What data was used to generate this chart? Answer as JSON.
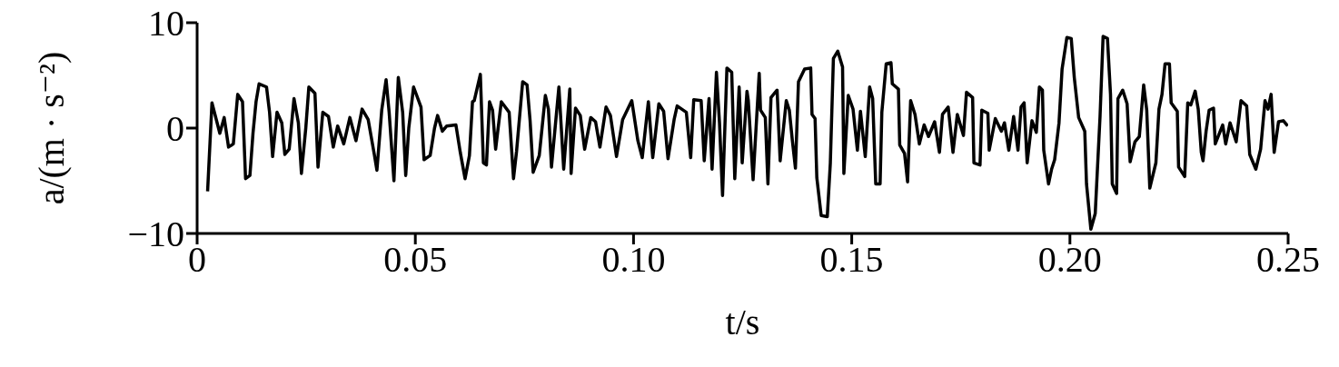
{
  "chart_data": {
    "type": "line",
    "xlabel": "t/s",
    "ylabel": "a/(m · s⁻²)",
    "xlim": [
      0,
      0.25
    ],
    "xticks": [
      0,
      0.05,
      {
        "value": 0.1,
        "label": "0.10"
      },
      0.15,
      {
        "value": 0.2,
        "label": "0.20"
      },
      0.25
    ],
    "ylim": [
      -10,
      10
    ],
    "yticks": [
      {
        "value": -10,
        "label": "−10"
      },
      0,
      10
    ],
    "x": [
      0.0024,
      0.0034,
      0.0052,
      0.0062,
      0.0072,
      0.0083,
      0.0093,
      0.0104,
      0.0111,
      0.0121,
      0.0128,
      0.0135,
      0.0142,
      0.0159,
      0.0166,
      0.0173,
      0.0183,
      0.0194,
      0.0201,
      0.0211,
      0.0222,
      0.0232,
      0.0239,
      0.0249,
      0.0256,
      0.027,
      0.0277,
      0.0288,
      0.0301,
      0.0312,
      0.0322,
      0.0336,
      0.035,
      0.0364,
      0.0378,
      0.0392,
      0.0406,
      0.0412,
      0.0423,
      0.0433,
      0.044,
      0.0451,
      0.0461,
      0.0471,
      0.0478,
      0.0485,
      0.0496,
      0.0513,
      0.052,
      0.0534,
      0.0544,
      0.0551,
      0.0562,
      0.0572,
      0.0593,
      0.0603,
      0.0614,
      0.0624,
      0.0631,
      0.0635,
      0.0649,
      0.0656,
      0.0663,
      0.067,
      0.0677,
      0.0684,
      0.0697,
      0.0715,
      0.0722,
      0.0725,
      0.0732,
      0.0746,
      0.0756,
      0.0763,
      0.077,
      0.0784,
      0.0798,
      0.0805,
      0.0812,
      0.0829,
      0.084,
      0.0854,
      0.0857,
      0.0867,
      0.0878,
      0.0888,
      0.0902,
      0.0913,
      0.0923,
      0.0937,
      0.0947,
      0.0961,
      0.0975,
      0.0982,
      0.0996,
      0.101,
      0.102,
      0.1034,
      0.1044,
      0.1058,
      0.1069,
      0.1079,
      0.1093,
      0.11,
      0.1121,
      0.1131,
      0.1138,
      0.1155,
      0.1162,
      0.1173,
      0.118,
      0.119,
      0.1197,
      0.1204,
      0.1214,
      0.1225,
      0.1232,
      0.1242,
      0.1249,
      0.126,
      0.1263,
      0.1274,
      0.1288,
      0.1291,
      0.1302,
      0.1308,
      0.1315,
      0.1329,
      0.1336,
      0.135,
      0.1357,
      0.1364,
      0.1371,
      0.1378,
      0.1392,
      0.1406,
      0.1409,
      0.1416,
      0.142,
      0.143,
      0.1444,
      0.1451,
      0.1458,
      0.1468,
      0.1479,
      0.1482,
      0.1492,
      0.1503,
      0.1513,
      0.152,
      0.1531,
      0.1541,
      0.1548,
      0.1555,
      0.1565,
      0.1569,
      0.1579,
      0.159,
      0.1593,
      0.1607,
      0.161,
      0.1621,
      0.1628,
      0.1635,
      0.1645,
      0.1655,
      0.1666,
      0.1676,
      0.169,
      0.1701,
      0.1708,
      0.1721,
      0.1732,
      0.1742,
      0.1756,
      0.1763,
      0.1777,
      0.178,
      0.1794,
      0.1798,
      0.1812,
      0.1815,
      0.1829,
      0.1843,
      0.185,
      0.186,
      0.1871,
      0.1881,
      0.1888,
      0.1895,
      0.1902,
      0.1913,
      0.1923,
      0.193,
      0.1937,
      0.194,
      0.1951,
      0.1958,
      0.1965,
      0.1975,
      0.1982,
      0.1993,
      0.2003,
      0.201,
      0.202,
      0.2034,
      0.2038,
      0.2048,
      0.2058,
      0.2069,
      0.2076,
      0.2086,
      0.2093,
      0.2097,
      0.2107,
      0.211,
      0.2121,
      0.2131,
      0.2138,
      0.2149,
      0.2159,
      0.2169,
      0.2176,
      0.2183,
      0.2197,
      0.2204,
      0.2211,
      0.2218,
      0.2228,
      0.2232,
      0.2246,
      0.2249,
      0.2263,
      0.227,
      0.2277,
      0.2287,
      0.2294,
      0.2301,
      0.2305,
      0.2312,
      0.2319,
      0.2329,
      0.2333,
      0.235,
      0.2357,
      0.2367,
      0.2381,
      0.2392,
      0.2405,
      0.2412,
      0.2426,
      0.2437,
      0.2447,
      0.2454,
      0.2461,
      0.2468,
      0.2478,
      0.2489,
      0.2499
    ],
    "series": [
      {
        "color": "#000000",
        "values": [
          -6,
          2.4,
          -0.5,
          1,
          -1.8,
          -1.5,
          3.2,
          2.5,
          -4.8,
          -4.5,
          -0.5,
          2.5,
          4.2,
          3.9,
          1.5,
          -2.7,
          1.5,
          0.5,
          -2.5,
          -2,
          2.8,
          0.5,
          -4.3,
          0,
          3.9,
          3.3,
          -3.7,
          1.5,
          1.1,
          -1.8,
          0.2,
          -1.5,
          1,
          -1.2,
          1.8,
          0.8,
          -2.5,
          -4,
          1.7,
          4.6,
          1.5,
          -5,
          4.8,
          1.5,
          -4.5,
          0,
          3.9,
          2,
          -3,
          -2.6,
          0,
          1.2,
          -0.3,
          0.2,
          0.3,
          -2.3,
          -4.8,
          -2.6,
          2.5,
          2.6,
          5.1,
          -3.3,
          -3.5,
          2.5,
          1.7,
          -2,
          2.5,
          1.5,
          -2.9,
          -4.8,
          -2.2,
          4.4,
          4.1,
          0.7,
          -4.2,
          -2.6,
          3.1,
          1.8,
          -3.7,
          3.9,
          -3.9,
          3.7,
          -4.3,
          1.9,
          1.2,
          -2,
          1,
          0.6,
          -1.8,
          2,
          1.2,
          -2.7,
          0.8,
          1.4,
          2.6,
          -1.2,
          -2.8,
          2.5,
          -2.8,
          2.3,
          1.6,
          -2.9,
          0.8,
          2.1,
          1.5,
          -2.8,
          2.7,
          2.6,
          -3.1,
          2.8,
          -3.9,
          5.3,
          0.5,
          -6.4,
          5.7,
          5.3,
          -4.8,
          3.9,
          -3.3,
          3.5,
          2.6,
          -4.9,
          5.2,
          1.7,
          1,
          -5.3,
          2.9,
          3.6,
          -3.1,
          2.6,
          1.7,
          -1.2,
          -3.8,
          4.4,
          5.6,
          5.7,
          1.3,
          0.9,
          -4.7,
          -8.3,
          -8.4,
          -3.3,
          6.6,
          7.3,
          5.8,
          -4.3,
          3.1,
          1.8,
          -2.1,
          1.6,
          -2.7,
          3.9,
          2.8,
          -5.3,
          -5.3,
          1.5,
          6.1,
          6.2,
          4.2,
          3.7,
          -1.6,
          -2.4,
          -5.1,
          2.6,
          1.3,
          -1.5,
          0.3,
          -0.8,
          0.6,
          -2.3,
          1.3,
          2,
          -2.3,
          1.3,
          -0.7,
          3.4,
          2.9,
          -3.3,
          -3.5,
          1.7,
          1.4,
          -2.1,
          0.9,
          -0.3,
          0.5,
          -2.1,
          1.1,
          -2.1,
          2,
          2.4,
          -3.3,
          0.7,
          -0.4,
          3.9,
          3.6,
          -2.1,
          -5.3,
          -3.9,
          -3,
          0.5,
          5.6,
          8.6,
          8.5,
          4.8,
          1,
          -0.3,
          -5.3,
          -9.6,
          -8.1,
          1.1,
          8.7,
          8.5,
          3.2,
          -5.3,
          -6.2,
          2.8,
          3.6,
          2.3,
          -3.2,
          -1.3,
          -0.8,
          4.1,
          1.7,
          -5.7,
          -3.3,
          1.8,
          3.2,
          6.1,
          6.1,
          2.4,
          1.6,
          -3.7,
          -4.6,
          2.4,
          2.2,
          3.5,
          1.8,
          -2.3,
          -3.1,
          -0.3,
          1.7,
          1.9,
          -1.5,
          0.3,
          -1.5,
          0.5,
          -1.3,
          2.6,
          2.1,
          -2.5,
          -3.9,
          -2,
          2.6,
          1.8,
          3.2,
          -2.3,
          0.6,
          0.7,
          0.2
        ]
      }
    ]
  }
}
